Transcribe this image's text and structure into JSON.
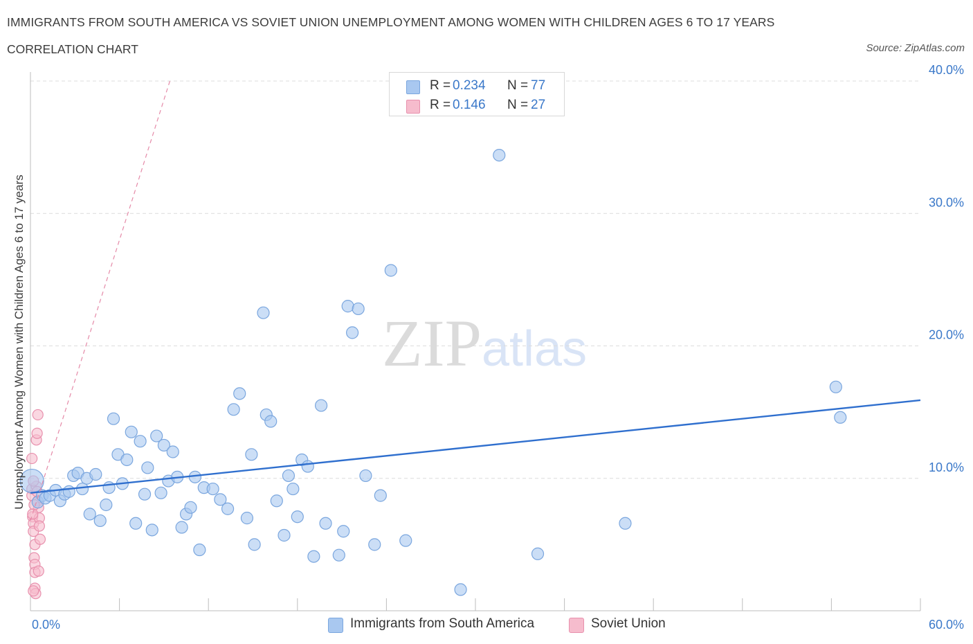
{
  "header": {
    "title": "IMMIGRANTS FROM SOUTH AMERICA VS SOVIET UNION UNEMPLOYMENT AMONG WOMEN WITH CHILDREN AGES 6 TO 17 YEARS",
    "subtitle": "CORRELATION CHART",
    "source": "Source: ZipAtlas.com"
  },
  "watermark": {
    "zip": "ZIP",
    "atlas": "atlas"
  },
  "legend": {
    "rows": [
      {
        "r_label": "R =",
        "r_value": "0.234",
        "n_label": "N =",
        "n_value": "77",
        "color": "#a9c8f0",
        "border": "#7aa6de"
      },
      {
        "r_label": "R =",
        "r_value": "0.146",
        "n_label": "N =",
        "n_value": "27",
        "color": "#f6bccd",
        "border": "#e890ad"
      }
    ]
  },
  "bottom_legend": [
    {
      "label": "Immigrants from South America",
      "color": "#a9c8f0",
      "border": "#7aa6de"
    },
    {
      "label": "Soviet Union",
      "color": "#f6bccd",
      "border": "#e890ad"
    }
  ],
  "chart_data": {
    "type": "scatter",
    "title": "IMMIGRANTS FROM SOUTH AMERICA VS SOVIET UNION UNEMPLOYMENT AMONG WOMEN WITH CHILDREN AGES 6 TO 17 YEARS",
    "xlabel": "",
    "ylabel": "Unemployment Among Women with Children Ages 6 to 17 years",
    "xlim": [
      0,
      60
    ],
    "ylim": [
      0,
      40
    ],
    "x_tick_labels": [
      "0.0%",
      "60.0%"
    ],
    "y_ticks": [
      10,
      20,
      30,
      40
    ],
    "y_tick_labels": [
      "10.0%",
      "20.0%",
      "30.0%",
      "40.0%"
    ],
    "grid": true,
    "legend_position": "top-center",
    "series": [
      {
        "name": "Immigrants from South America",
        "color": "#a9c8f0",
        "stroke": "#7aa6de",
        "trend": {
          "x": [
            0,
            60
          ],
          "y": [
            8.9,
            15.9
          ],
          "color": "#2f6fce"
        },
        "points": [
          [
            0.1,
            9.8
          ],
          [
            0.5,
            8.2
          ],
          [
            0.8,
            8.7
          ],
          [
            1.0,
            8.5
          ],
          [
            1.3,
            8.7
          ],
          [
            1.7,
            9.1
          ],
          [
            2.0,
            8.3
          ],
          [
            2.3,
            8.8
          ],
          [
            2.6,
            9.0
          ],
          [
            2.9,
            10.2
          ],
          [
            3.2,
            10.4
          ],
          [
            3.5,
            9.2
          ],
          [
            3.8,
            10.0
          ],
          [
            4.0,
            7.3
          ],
          [
            4.4,
            10.3
          ],
          [
            4.7,
            6.8
          ],
          [
            5.1,
            8.0
          ],
          [
            5.3,
            9.3
          ],
          [
            5.6,
            14.5
          ],
          [
            5.9,
            11.8
          ],
          [
            6.2,
            9.6
          ],
          [
            6.5,
            11.4
          ],
          [
            6.8,
            13.5
          ],
          [
            7.1,
            6.6
          ],
          [
            7.4,
            12.8
          ],
          [
            7.7,
            8.8
          ],
          [
            7.9,
            10.8
          ],
          [
            8.2,
            6.1
          ],
          [
            8.5,
            13.2
          ],
          [
            8.8,
            8.9
          ],
          [
            9.0,
            12.5
          ],
          [
            9.3,
            9.8
          ],
          [
            9.6,
            12.0
          ],
          [
            9.9,
            10.1
          ],
          [
            10.2,
            6.3
          ],
          [
            10.5,
            7.3
          ],
          [
            10.8,
            7.8
          ],
          [
            11.1,
            10.1
          ],
          [
            11.4,
            4.6
          ],
          [
            11.7,
            9.3
          ],
          [
            12.3,
            9.2
          ],
          [
            12.8,
            8.4
          ],
          [
            13.3,
            7.7
          ],
          [
            13.7,
            15.2
          ],
          [
            14.1,
            16.4
          ],
          [
            14.6,
            7.0
          ],
          [
            14.9,
            11.8
          ],
          [
            15.1,
            5.0
          ],
          [
            15.7,
            22.5
          ],
          [
            15.9,
            14.8
          ],
          [
            16.2,
            14.3
          ],
          [
            16.6,
            8.3
          ],
          [
            17.1,
            5.7
          ],
          [
            17.4,
            10.2
          ],
          [
            17.7,
            9.2
          ],
          [
            18.0,
            7.1
          ],
          [
            18.3,
            11.4
          ],
          [
            18.7,
            10.9
          ],
          [
            19.1,
            4.1
          ],
          [
            19.6,
            15.5
          ],
          [
            19.9,
            6.6
          ],
          [
            20.8,
            4.2
          ],
          [
            21.1,
            6.0
          ],
          [
            21.4,
            23.0
          ],
          [
            21.7,
            21.0
          ],
          [
            22.1,
            22.8
          ],
          [
            22.6,
            10.2
          ],
          [
            23.2,
            5.0
          ],
          [
            23.6,
            8.7
          ],
          [
            24.3,
            25.7
          ],
          [
            25.3,
            5.3
          ],
          [
            29.0,
            1.6
          ],
          [
            31.6,
            34.4
          ],
          [
            34.2,
            4.3
          ],
          [
            40.1,
            6.6
          ],
          [
            54.3,
            16.9
          ],
          [
            54.6,
            14.6
          ]
        ]
      },
      {
        "name": "Soviet Union",
        "color": "#f6bccd",
        "stroke": "#e890ad",
        "trend": {
          "x": [
            0,
            9.4
          ],
          "y": [
            6.8,
            40.0
          ],
          "color": "#e58aa8",
          "dashed": true
        },
        "points": [
          [
            0.1,
            9.2
          ],
          [
            0.1,
            8.7
          ],
          [
            0.15,
            7.1
          ],
          [
            0.2,
            6.6
          ],
          [
            0.2,
            6.0
          ],
          [
            0.25,
            4.0
          ],
          [
            0.3,
            3.5
          ],
          [
            0.3,
            2.9
          ],
          [
            0.3,
            1.7
          ],
          [
            0.35,
            1.3
          ],
          [
            0.4,
            9.4
          ],
          [
            0.45,
            9.0
          ],
          [
            0.5,
            8.3
          ],
          [
            0.55,
            7.8
          ],
          [
            0.6,
            7.0
          ],
          [
            0.1,
            11.5
          ],
          [
            0.2,
            9.8
          ],
          [
            0.25,
            8.0
          ],
          [
            0.3,
            5.0
          ],
          [
            0.4,
            12.9
          ],
          [
            0.45,
            13.4
          ],
          [
            0.5,
            14.8
          ],
          [
            0.55,
            3.0
          ],
          [
            0.6,
            6.4
          ],
          [
            0.65,
            5.4
          ],
          [
            0.2,
            1.5
          ],
          [
            0.15,
            7.3
          ]
        ]
      }
    ]
  }
}
